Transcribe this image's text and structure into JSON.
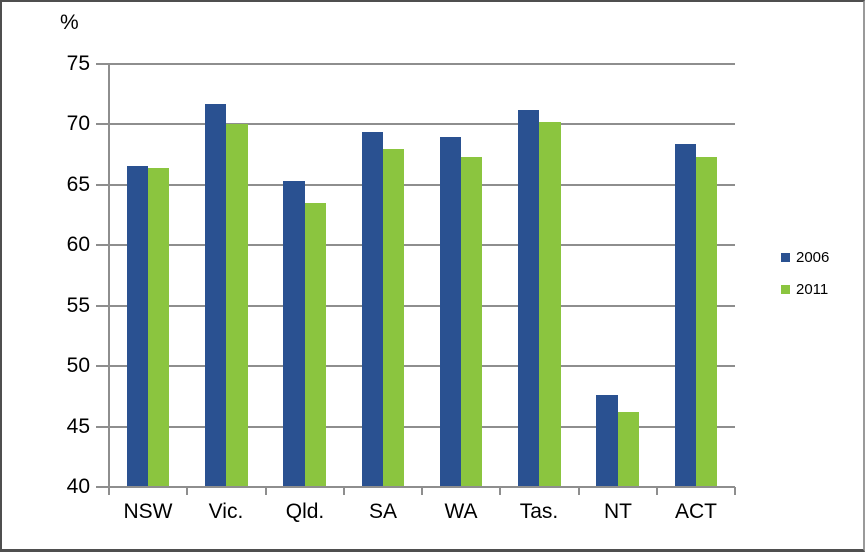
{
  "figure": {
    "unit_label": "%"
  },
  "chart_data": {
    "type": "bar",
    "title": "",
    "xlabel": "",
    "ylabel": "%",
    "categories": [
      "NSW",
      "Vic.",
      "Qld.",
      "SA",
      "WA",
      "Tas.",
      "NT",
      "ACT"
    ],
    "series": [
      {
        "name": "2006",
        "color": "#2A5191",
        "values": [
          66.6,
          71.7,
          65.3,
          69.4,
          69.0,
          71.2,
          47.6,
          68.4
        ]
      },
      {
        "name": "2011",
        "color": "#8BC53F",
        "values": [
          66.4,
          70.0,
          63.5,
          68.0,
          67.3,
          70.2,
          46.2,
          67.3
        ]
      }
    ],
    "ylim": [
      40,
      75
    ],
    "yticks": [
      40,
      45,
      50,
      55,
      60,
      65,
      70,
      75
    ],
    "grid": true,
    "legend_position": "right"
  },
  "colors": {
    "grid": "#8E8E8E",
    "axis": "#8E8E8E",
    "text": "#000000",
    "background": "#FFFFFF",
    "border": "#4F4F4F"
  }
}
